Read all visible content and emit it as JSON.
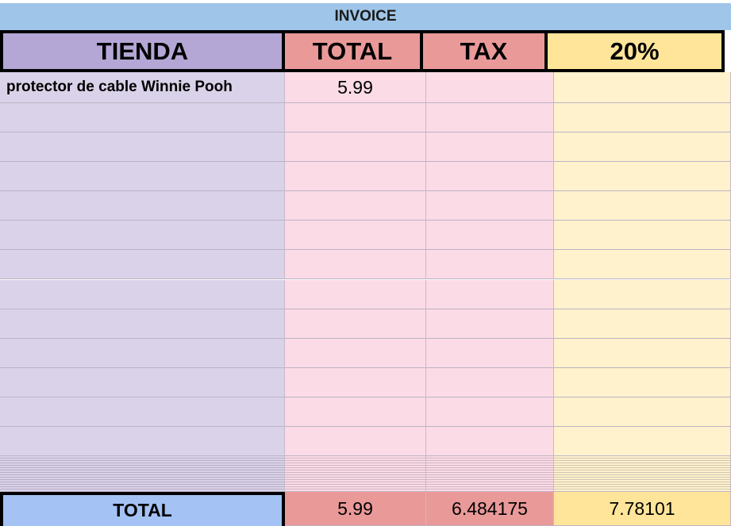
{
  "title": "INVOICE",
  "headers": {
    "store": "TIENDA",
    "total": "TOTAL",
    "tax": "TAX",
    "rate": "20%"
  },
  "rows": [
    {
      "store": "protector de cable Winnie Pooh",
      "total": "5.99",
      "tax": "",
      "rate": ""
    }
  ],
  "empty_row_count": 12,
  "totals": {
    "label": "TOTAL",
    "total": "5.99",
    "tax": "6.484175",
    "rate": "7.78101"
  },
  "colors": {
    "title_bg": "#9fc5e8",
    "store_header": "#b4a7d6",
    "total_header": "#ea9999",
    "rate_header": "#ffe599",
    "store_col": "#d9d2e9",
    "total_col": "#fbdbe6",
    "rate_col": "#fff2cc",
    "totals_label": "#a4c2f4"
  }
}
